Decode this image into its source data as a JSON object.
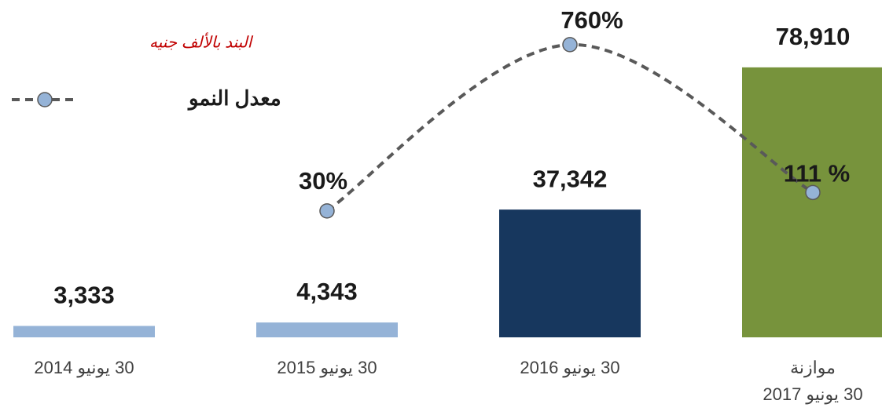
{
  "chart_data": {
    "type": "bar",
    "subtitle": "البند بالألف جنيه",
    "categories": [
      "30 يونيو 2014",
      "30 يونيو 2015",
      "30 يونيو 2016",
      "موازنة\n30 يونيو 2017"
    ],
    "series": [
      {
        "type": "bar",
        "values": [
          3333,
          4343,
          37342,
          78910
        ],
        "value_labels": [
          "3,333",
          "4,343",
          "37,342",
          "78,910"
        ],
        "colors": [
          "#95b3d7",
          "#95b3d7",
          "#17375e",
          "#77933c"
        ]
      },
      {
        "type": "line",
        "name": "معدل النمو",
        "axis": "y2",
        "color": "#595959",
        "marker_color": "#95b3d7",
        "values": [
          null,
          30,
          760,
          111
        ],
        "value_labels": [
          null,
          "30%",
          "760%",
          "111 %"
        ]
      }
    ],
    "ylim": [
      0,
      98600
    ],
    "y2lim": [
      -525,
      956
    ],
    "legend": "top-left"
  }
}
